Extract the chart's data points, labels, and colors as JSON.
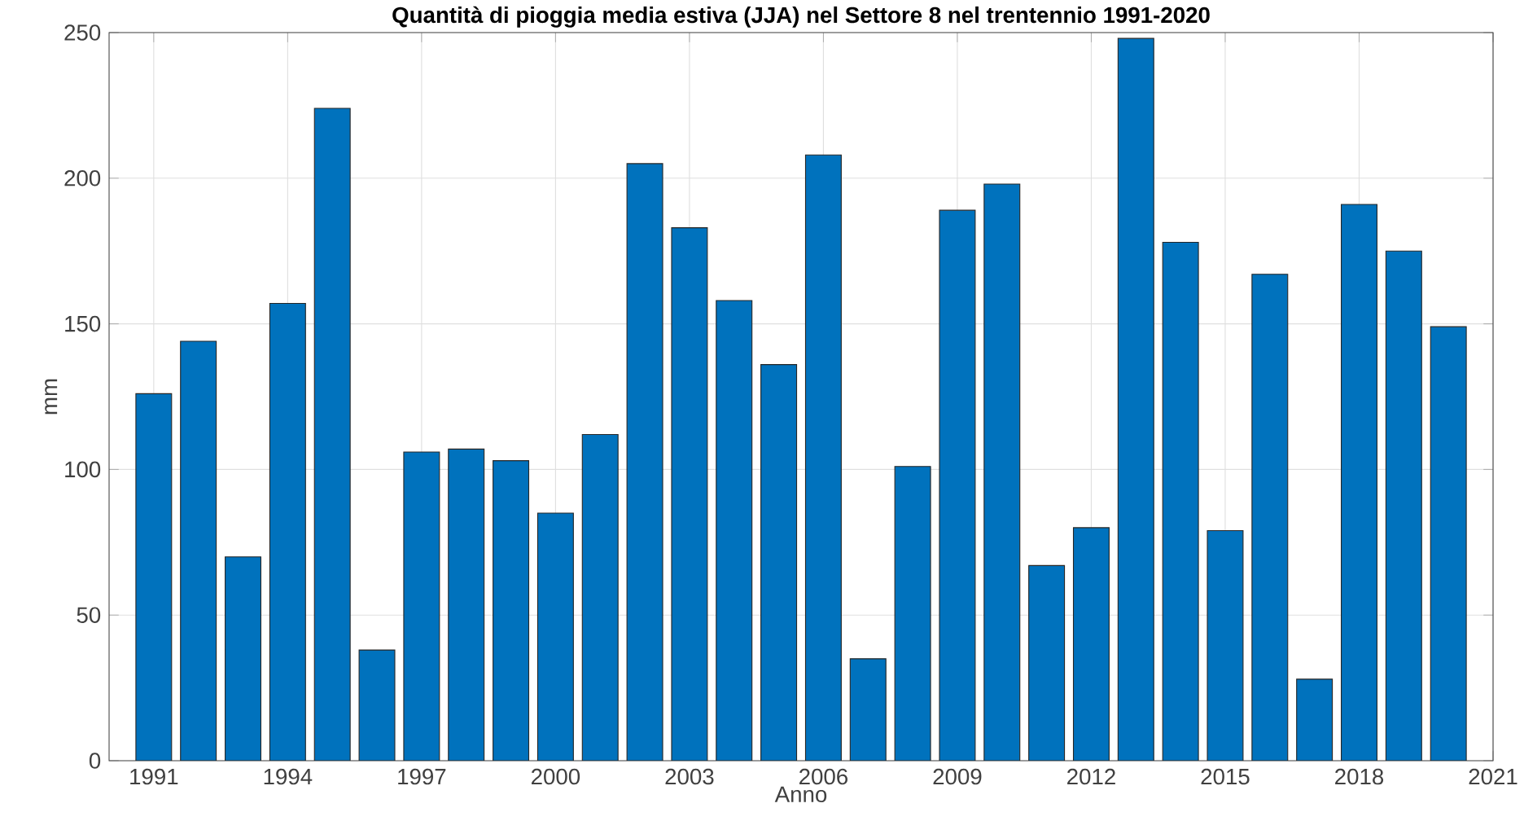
{
  "chart_data": {
    "type": "bar",
    "title": "Quantità di pioggia media estiva (JJA) nel Settore 8 nel trentennio 1991-2020",
    "xlabel": "Anno",
    "ylabel": "mm",
    "x": [
      1991,
      1992,
      1993,
      1994,
      1995,
      1996,
      1997,
      1998,
      1999,
      2000,
      2001,
      2002,
      2003,
      2004,
      2005,
      2006,
      2007,
      2008,
      2009,
      2010,
      2011,
      2012,
      2013,
      2014,
      2015,
      2016,
      2017,
      2018,
      2019,
      2020
    ],
    "values": [
      126,
      144,
      70,
      157,
      224,
      38,
      106,
      107,
      103,
      85,
      112,
      205,
      183,
      158,
      136,
      208,
      35,
      101,
      189,
      198,
      67,
      80,
      248,
      178,
      79,
      167,
      28,
      191,
      175,
      149
    ],
    "color": "#0072bd",
    "xlim": [
      1990,
      2021
    ],
    "xticks": [
      1991,
      1994,
      1997,
      2000,
      2003,
      2006,
      2009,
      2012,
      2015,
      2018,
      2021
    ],
    "ylim": [
      0,
      250
    ],
    "yticks": [
      0,
      50,
      100,
      150,
      200,
      250
    ],
    "grid": true
  }
}
